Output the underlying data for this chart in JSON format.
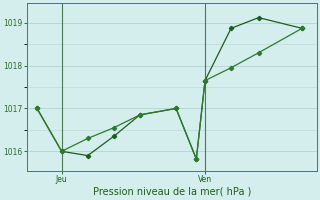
{
  "xlabel": "Pression niveau de la mer( hPa )",
  "bg_color": "#d4eeed",
  "line_color1": "#1e5c1e",
  "line_color2": "#2d7a2d",
  "grid_color": "#b8d8d4",
  "axis_color": "#4a7a4a",
  "tick_color": "#2d6b2d",
  "label_color": "#1e5c1e",
  "ylim": [
    1015.55,
    1019.45
  ],
  "yticks": [
    1016,
    1017,
    1018,
    1019
  ],
  "xlim": [
    0.0,
    10.0
  ],
  "x_jeu": 1.2,
  "x_ven": 6.15,
  "line1_x": [
    0.35,
    1.2,
    2.1,
    3.0,
    3.9,
    5.15,
    5.85,
    6.15,
    7.05,
    8.0,
    9.5
  ],
  "line1_y": [
    1017.0,
    1016.0,
    1015.9,
    1016.35,
    1016.85,
    1017.0,
    1015.82,
    1017.65,
    1018.87,
    1019.12,
    1018.87
  ],
  "line2_x": [
    0.35,
    1.2,
    2.1,
    3.0,
    3.9,
    5.15,
    5.85,
    6.15,
    7.05,
    8.0,
    9.5
  ],
  "line2_y": [
    1017.0,
    1016.0,
    1016.3,
    1016.55,
    1016.85,
    1017.0,
    1015.82,
    1017.65,
    1017.95,
    1018.3,
    1018.87
  ]
}
